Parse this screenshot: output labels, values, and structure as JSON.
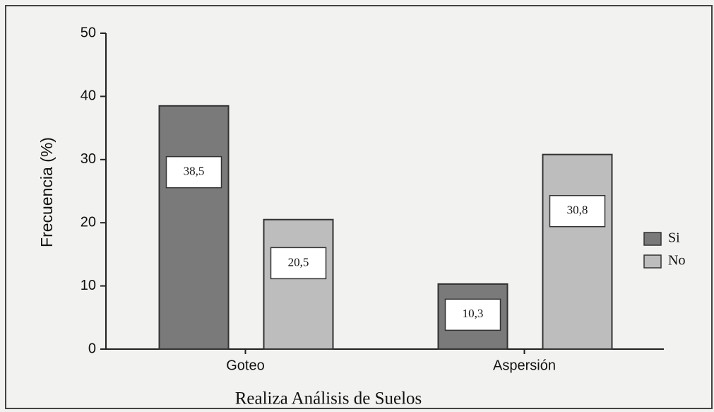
{
  "chart_data": {
    "type": "bar",
    "xlabel": "Realiza Análisis de Suelos",
    "ylabel": "Frecuencia (%)",
    "categories": [
      "Goteo",
      "Aspersión"
    ],
    "series": [
      {
        "name": "Si",
        "color": "#7a7a7a",
        "values": [
          38.5,
          10.3
        ],
        "value_labels": [
          "38,5",
          "10,3"
        ]
      },
      {
        "name": "No",
        "color": "#bdbdbd",
        "values": [
          20.5,
          30.8
        ],
        "value_labels": [
          "20,5",
          "30,8"
        ]
      }
    ],
    "ylim": [
      0,
      50
    ],
    "yticks": [
      0,
      10,
      20,
      30,
      40,
      50
    ],
    "legend": "right"
  }
}
